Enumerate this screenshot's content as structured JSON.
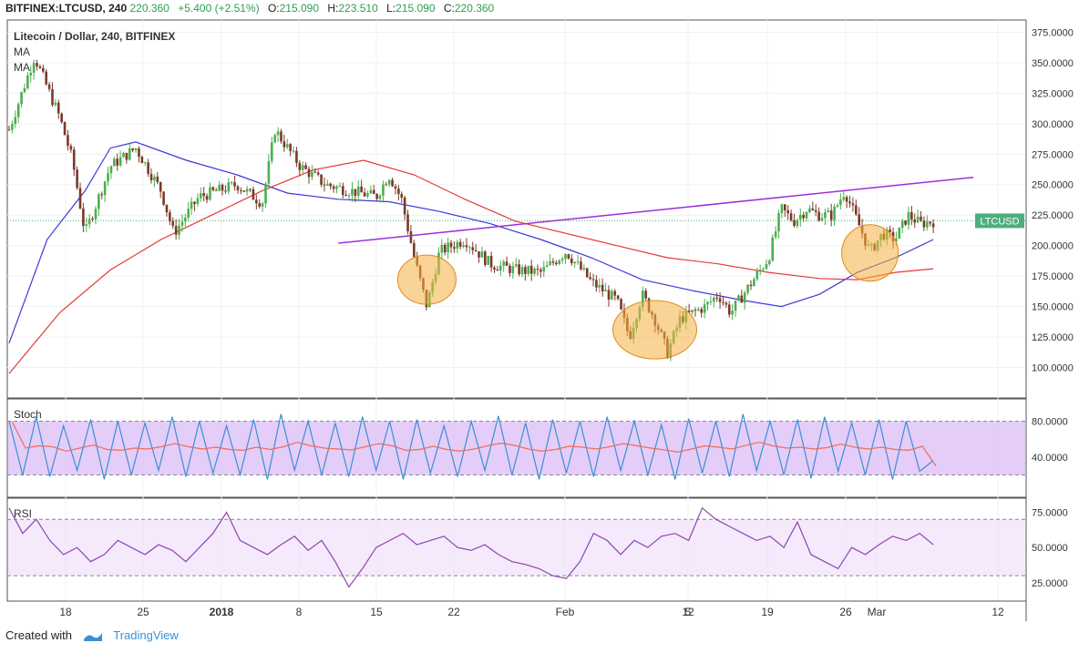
{
  "header": {
    "symbol": "BITFINEX:LTCUSD, 240",
    "last": "220.360",
    "change": "+5.400 (+2.51%)",
    "o_label": "O:",
    "o": "215.090",
    "h_label": "H:",
    "h": "223.510",
    "l_label": "L:",
    "l": "215.090",
    "c_label": "C:",
    "c": "220.360"
  },
  "legend": {
    "title": "Litecoin / Dollar, 240, BITFINEX",
    "ma1": "MA",
    "ma2": "MA"
  },
  "price_tag": "LTCUSD",
  "pane_labels": {
    "stoch": "Stoch",
    "rsi": "RSI"
  },
  "footer": {
    "created_with": "Created with",
    "brand": "TradingView",
    "logo_icon": "tradingview-logo-icon"
  },
  "colors": {
    "up": "#4caf50",
    "down": "#7a3a2a",
    "ma_fast": "#3a3ad6",
    "ma_slow": "#e53935",
    "trendline": "#9b30d9",
    "highlight": "#f5b041",
    "stoch_band": "#d9b8f5",
    "rsi_band": "#ecdcfa",
    "rsi_line": "#8e44ad",
    "stoch_k": "#3b8fd6",
    "stoch_d": "#ef6c5a",
    "price_tag": "#4caf7d"
  },
  "chart_data": {
    "type": "candlestick",
    "x_ticks": [
      "18",
      "25",
      "2018",
      "8",
      "15",
      "22",
      "Feb",
      "5",
      "12",
      "19",
      "26",
      "Mar",
      "12"
    ],
    "price_axis": {
      "ticks": [
        "375.0000",
        "350.0000",
        "325.0000",
        "300.0000",
        "275.0000",
        "250.0000",
        "225.0000",
        "200.0000",
        "175.0000",
        "150.0000",
        "125.0000",
        "100.0000"
      ],
      "ylim": [
        75,
        385
      ]
    },
    "last_price": 220.36,
    "price_series": [
      {
        "x": 0,
        "close": 295
      },
      {
        "x": 2,
        "close": 355
      },
      {
        "x": 4,
        "close": 305
      },
      {
        "x": 5,
        "close": 270
      },
      {
        "x": 6,
        "close": 210
      },
      {
        "x": 8,
        "close": 265
      },
      {
        "x": 10,
        "close": 280
      },
      {
        "x": 12,
        "close": 245
      },
      {
        "x": 13,
        "close": 210
      },
      {
        "x": 15,
        "close": 240
      },
      {
        "x": 18,
        "close": 250
      },
      {
        "x": 20,
        "close": 235
      },
      {
        "x": 21,
        "close": 295
      },
      {
        "x": 23,
        "close": 265
      },
      {
        "x": 25,
        "close": 250
      },
      {
        "x": 27,
        "close": 245
      },
      {
        "x": 29,
        "close": 240
      },
      {
        "x": 30,
        "close": 258
      },
      {
        "x": 31,
        "close": 238
      },
      {
        "x": 32,
        "close": 190
      },
      {
        "x": 33,
        "close": 150
      },
      {
        "x": 34,
        "close": 195
      },
      {
        "x": 36,
        "close": 205
      },
      {
        "x": 38,
        "close": 185
      },
      {
        "x": 40,
        "close": 180
      },
      {
        "x": 42,
        "close": 178
      },
      {
        "x": 44,
        "close": 195
      },
      {
        "x": 46,
        "close": 170
      },
      {
        "x": 48,
        "close": 155
      },
      {
        "x": 49,
        "close": 125
      },
      {
        "x": 50,
        "close": 160
      },
      {
        "x": 51,
        "close": 140
      },
      {
        "x": 52,
        "close": 112
      },
      {
        "x": 53,
        "close": 140
      },
      {
        "x": 55,
        "close": 150
      },
      {
        "x": 56,
        "close": 160
      },
      {
        "x": 57,
        "close": 145
      },
      {
        "x": 59,
        "close": 175
      },
      {
        "x": 60,
        "close": 190
      },
      {
        "x": 61,
        "close": 230
      },
      {
        "x": 62,
        "close": 220
      },
      {
        "x": 63,
        "close": 230
      },
      {
        "x": 64,
        "close": 225
      },
      {
        "x": 65,
        "close": 225
      },
      {
        "x": 66,
        "close": 245
      },
      {
        "x": 67,
        "close": 220
      },
      {
        "x": 68,
        "close": 195
      },
      {
        "x": 69,
        "close": 210
      },
      {
        "x": 70,
        "close": 205
      },
      {
        "x": 71,
        "close": 225
      },
      {
        "x": 72,
        "close": 218
      },
      {
        "x": 73,
        "close": 220
      }
    ],
    "moving_averages": [
      {
        "name": "MA",
        "values": [
          [
            0,
            120
          ],
          [
            3,
            205
          ],
          [
            6,
            245
          ],
          [
            8,
            280
          ],
          [
            10,
            285
          ],
          [
            14,
            270
          ],
          [
            18,
            258
          ],
          [
            22,
            243
          ],
          [
            26,
            238
          ],
          [
            30,
            236
          ],
          [
            34,
            228
          ],
          [
            38,
            218
          ],
          [
            42,
            205
          ],
          [
            46,
            190
          ],
          [
            50,
            172
          ],
          [
            54,
            163
          ],
          [
            58,
            155
          ],
          [
            61,
            150
          ],
          [
            64,
            160
          ],
          [
            67,
            178
          ],
          [
            70,
            190
          ],
          [
            73,
            205
          ]
        ]
      },
      {
        "name": "MA",
        "values": [
          [
            0,
            95
          ],
          [
            4,
            145
          ],
          [
            8,
            180
          ],
          [
            12,
            205
          ],
          [
            16,
            225
          ],
          [
            20,
            245
          ],
          [
            24,
            262
          ],
          [
            28,
            270
          ],
          [
            32,
            258
          ],
          [
            36,
            238
          ],
          [
            40,
            220
          ],
          [
            44,
            210
          ],
          [
            48,
            200
          ],
          [
            52,
            190
          ],
          [
            56,
            185
          ],
          [
            60,
            178
          ],
          [
            64,
            173
          ],
          [
            67,
            172
          ],
          [
            70,
            178
          ],
          [
            73,
            181
          ]
        ]
      }
    ],
    "trendline": [
      [
        26,
        202
      ],
      [
        74,
        256
      ]
    ],
    "highlights": [
      {
        "x": 33,
        "y": 172
      },
      {
        "x": 51,
        "y": 131
      },
      {
        "x": 68,
        "y": 194
      }
    ],
    "stochastic": {
      "ticks": [
        "80.0000",
        "40.0000"
      ],
      "ylim": [
        -5,
        105
      ],
      "upper": 80,
      "lower": 20,
      "k": [
        80,
        20,
        85,
        18,
        75,
        25,
        82,
        15,
        80,
        20,
        78,
        25,
        85,
        18,
        80,
        22,
        75,
        20,
        82,
        15,
        88,
        25,
        80,
        20,
        78,
        18,
        85,
        25,
        80,
        15,
        82,
        22,
        75,
        18,
        80,
        25,
        86,
        20,
        78,
        15,
        82,
        22,
        80,
        18,
        85,
        25,
        80,
        20,
        76,
        15,
        83,
        22,
        80,
        18,
        88,
        25,
        80,
        20,
        82,
        16,
        85,
        24,
        78,
        20,
        82,
        15,
        80,
        24,
        36
      ]
    },
    "rsi": {
      "ticks": [
        "75.0000",
        "50.0000",
        "25.0000"
      ],
      "ylim": [
        12,
        85
      ],
      "upper": 70,
      "lower": 30,
      "values": [
        78,
        60,
        70,
        55,
        45,
        50,
        40,
        45,
        55,
        50,
        45,
        52,
        48,
        40,
        50,
        60,
        75,
        55,
        50,
        45,
        52,
        58,
        48,
        55,
        40,
        22,
        35,
        50,
        55,
        60,
        52,
        55,
        58,
        50,
        48,
        52,
        45,
        40,
        38,
        35,
        30,
        28,
        40,
        60,
        55,
        45,
        55,
        50,
        58,
        60,
        55,
        78,
        70,
        65,
        60,
        55,
        58,
        50,
        68,
        45,
        40,
        35,
        50,
        45,
        52,
        58,
        55,
        60,
        52
      ]
    }
  }
}
